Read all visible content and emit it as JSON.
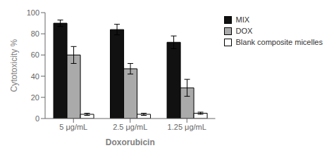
{
  "chart_data": {
    "type": "bar",
    "categories": [
      "5 μg/mL",
      "2.5 μg/mL",
      "1.25 μg/mL"
    ],
    "series": [
      {
        "name": "MIX",
        "color": "#111111",
        "values": [
          90,
          84,
          72
        ],
        "errors": [
          3,
          5,
          6
        ]
      },
      {
        "name": "DOX",
        "color": "#aaaaaa",
        "values": [
          60,
          47,
          29
        ],
        "errors": [
          8,
          5,
          8
        ]
      },
      {
        "name": "Blank composite micelles",
        "color": "#ffffff",
        "values": [
          4,
          4,
          5
        ],
        "errors": [
          1,
          1,
          1
        ]
      }
    ],
    "xlabel": "Doxorubicin",
    "ylabel": "Cytotoxicity %",
    "ylim": [
      0,
      100
    ],
    "yticks": [
      0,
      20,
      40,
      60,
      80,
      100
    ],
    "grid": false,
    "legend": "right"
  }
}
